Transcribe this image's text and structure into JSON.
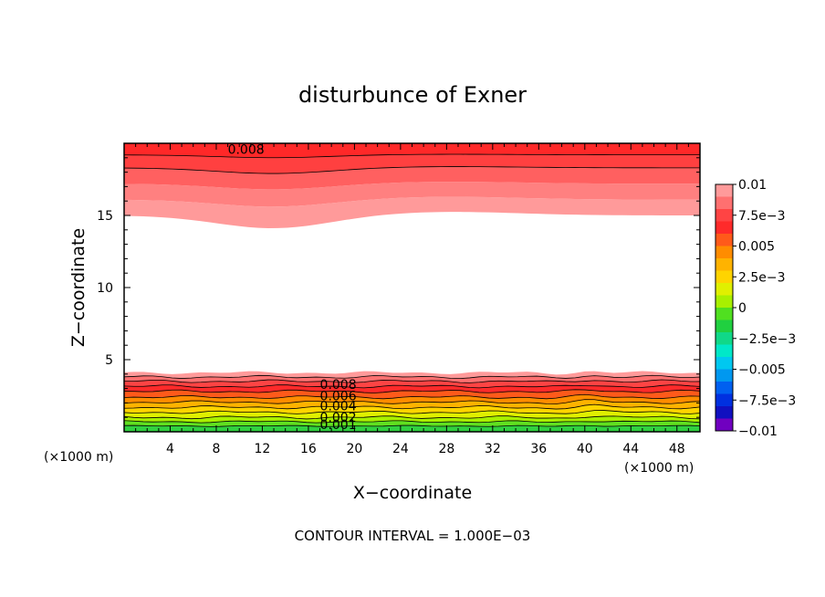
{
  "chart_data": {
    "type": "contour",
    "title": "disturbunce of Exner",
    "xlabel": "X−coordinate",
    "ylabel": "Z−coordinate",
    "x_unit": "(×1000 m)",
    "y_unit": "(×1000 m)",
    "xlim": [
      0,
      50
    ],
    "ylim": [
      0,
      20
    ],
    "x_ticks": [
      4,
      8,
      12,
      16,
      20,
      24,
      28,
      32,
      36,
      40,
      44,
      48
    ],
    "y_ticks": [
      5,
      10,
      15
    ],
    "footer": "CONTOUR INTERVAL = 1.000E−03",
    "contour_labels": [
      {
        "text": "0.008",
        "x": 17.0,
        "z": 3.3
      },
      {
        "text": "0.006",
        "x": 17.0,
        "z": 2.5
      },
      {
        "text": "0.004",
        "x": 17.0,
        "z": 1.8
      },
      {
        "text": "0.002",
        "x": 17.0,
        "z": 1.0
      },
      {
        "text": "0.001",
        "x": 17.0,
        "z": 0.5
      },
      {
        "text": "0.008",
        "x": 9.0,
        "z": 19.6
      }
    ],
    "colorbar": {
      "ticks": [
        "0.01",
        "7.5e−3",
        "0.005",
        "2.5e−3",
        "0",
        "−2.5e−3",
        "−0.005",
        "−7.5e−3",
        "−0.01"
      ],
      "colors": [
        "#ff9a9a",
        "#ff7070",
        "#ff4444",
        "#ff2a2a",
        "#ff5a1a",
        "#ff8c00",
        "#ffb300",
        "#ffd400",
        "#e0f000",
        "#a8f000",
        "#50e020",
        "#20d040",
        "#10d888",
        "#00e8c8",
        "#00c8f0",
        "#0098f0",
        "#0060f0",
        "#0030e0",
        "#1010c0",
        "#7000c0"
      ]
    },
    "bottom_bands": {
      "colors": [
        "#30d040",
        "#60e020",
        "#a8f000",
        "#e0f000",
        "#ffd400",
        "#ffb300",
        "#ff8c00",
        "#ff5a1a",
        "#ff2a2a",
        "#ff4444",
        "#ff7070",
        "#ff9a9a"
      ],
      "boundaries_km": [
        0,
        0.4,
        0.7,
        1.0,
        1.35,
        1.7,
        2.05,
        2.4,
        2.8,
        3.15,
        3.5,
        3.8,
        4.1
      ]
    },
    "top_bands": {
      "colors": [
        "#ff9a9a",
        "#ff8080",
        "#ff6060",
        "#ff4040",
        "#ff2828"
      ],
      "boundaries_km_left": [
        15.0,
        16.1,
        17.2,
        18.3,
        19.2,
        20.0
      ],
      "boundaries_km_mid": [
        14.1,
        15.6,
        16.8,
        17.9,
        19.0,
        20.0
      ]
    }
  }
}
